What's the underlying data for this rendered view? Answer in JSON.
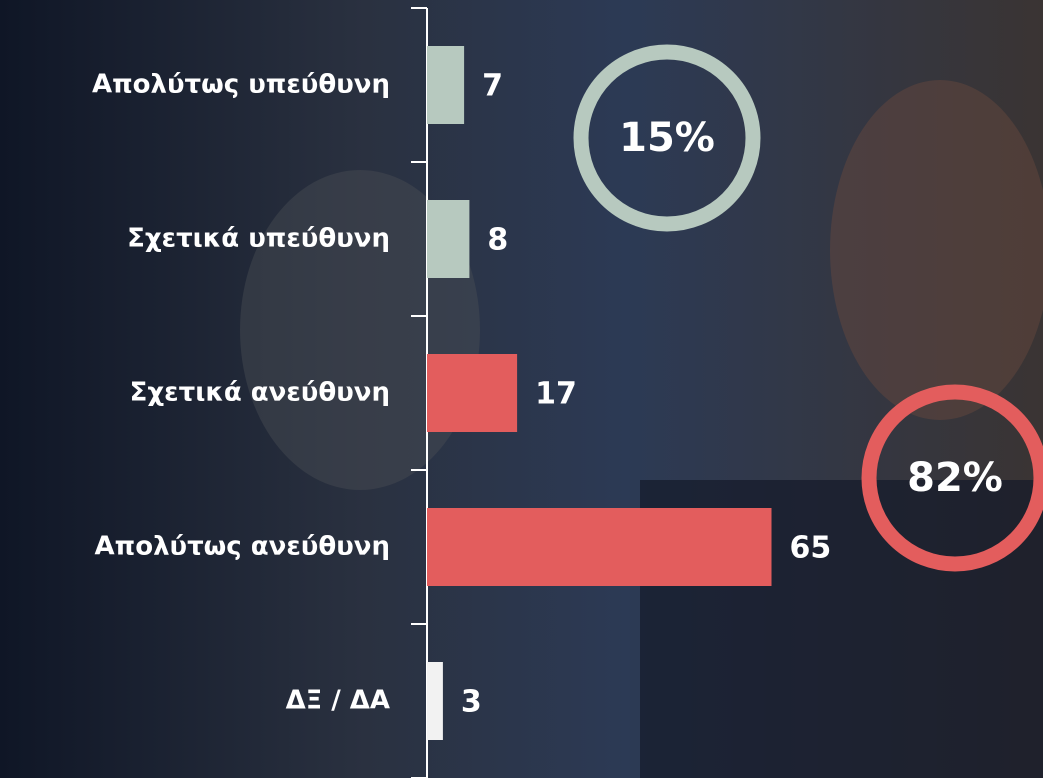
{
  "chart_data": {
    "type": "bar",
    "orientation": "horizontal",
    "categories": [
      "Απολύτως υπεύθυνη",
      "Σχετικά υπεύθυνη",
      "Σχετικά ανεύθυνη",
      "Απολύτως ανεύθυνη",
      "ΔΞ / ΔΑ"
    ],
    "values": [
      7,
      8,
      17,
      65,
      3
    ],
    "colors": [
      "#b7c9bf",
      "#b7c9bf",
      "#e35d5d",
      "#e35d5d",
      "#f2f2f2"
    ],
    "annotations": [
      {
        "label": "15%",
        "color": "#b7c9bf"
      },
      {
        "label": "82%",
        "color": "#e35d5d"
      }
    ]
  }
}
